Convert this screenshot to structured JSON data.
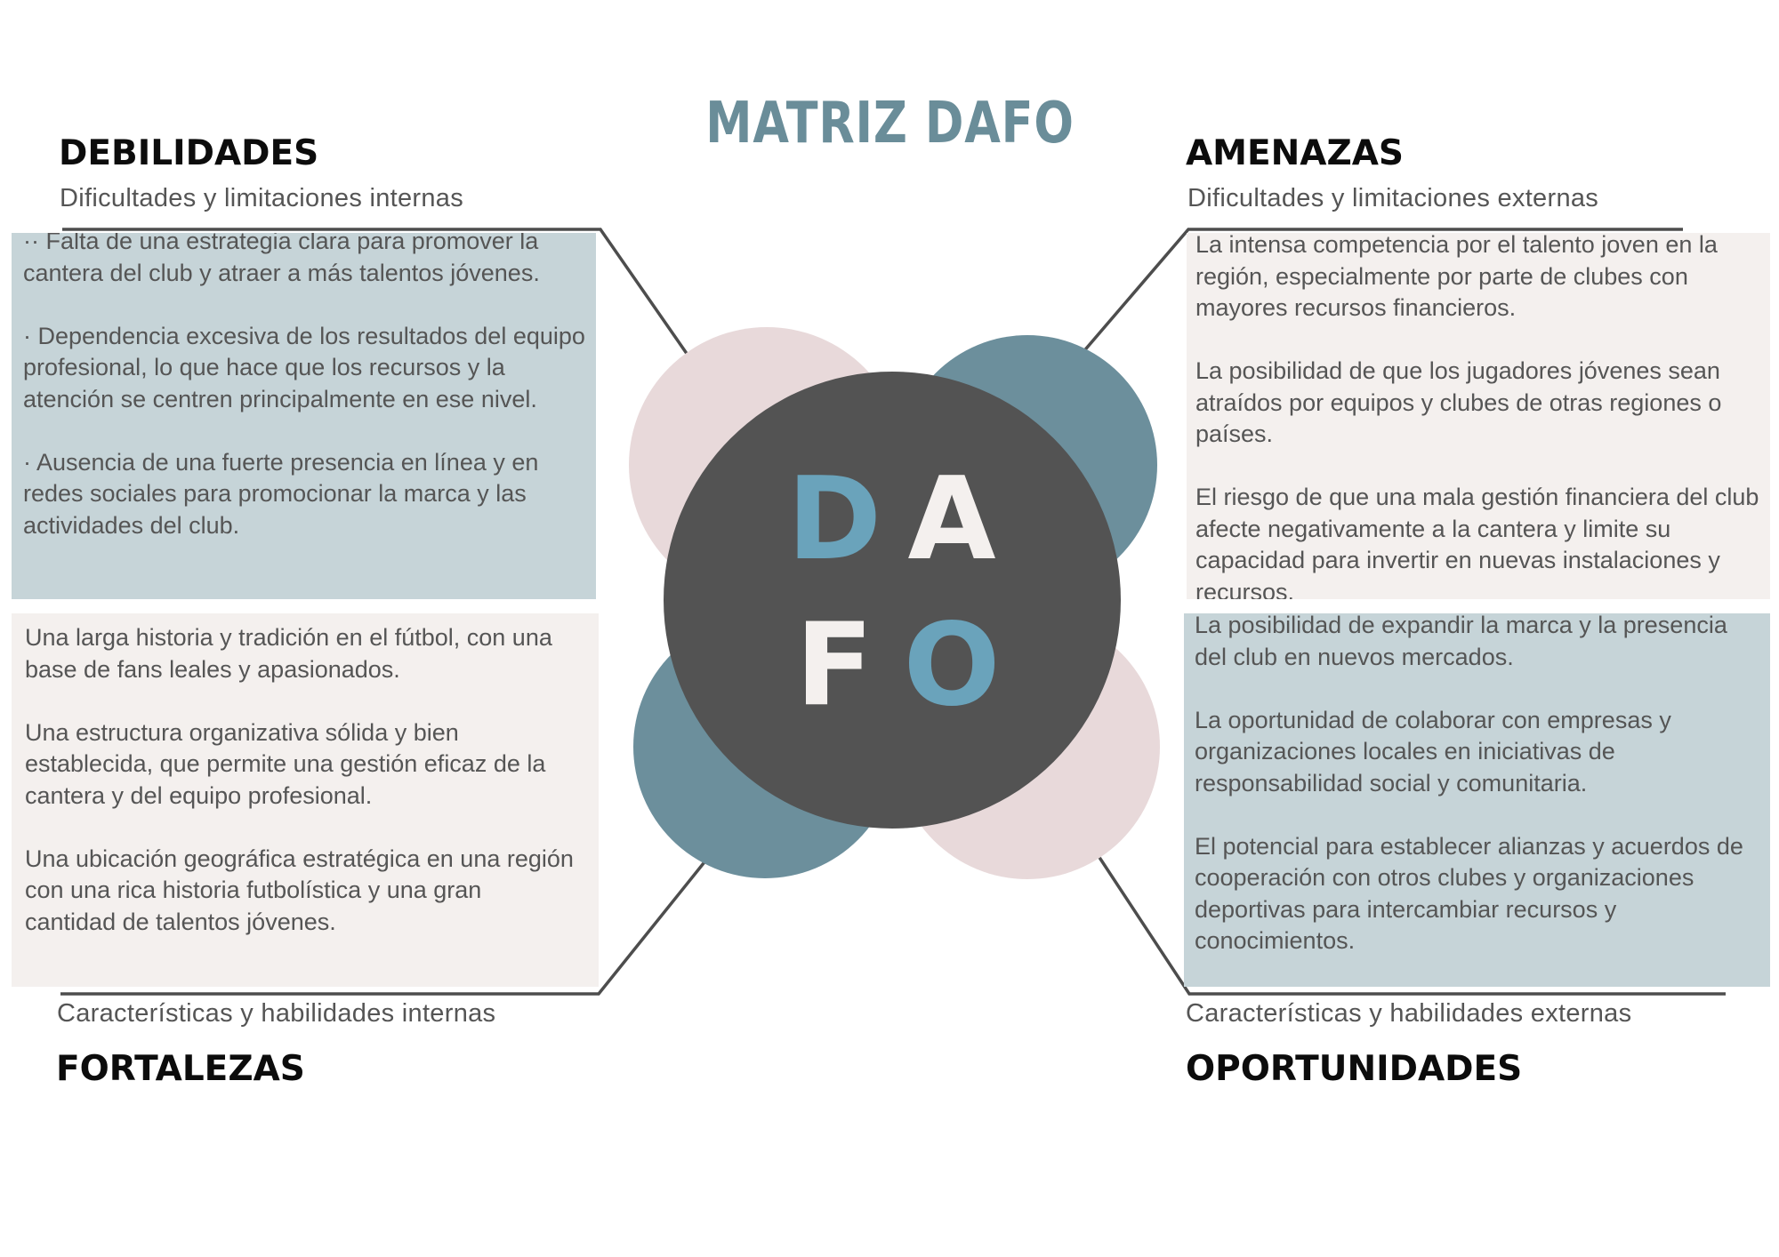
{
  "title": "MATRIZ DAFO",
  "colors": {
    "title": "#6a8d99",
    "center_circle": "#535353",
    "teal_circle": "#6c8f9c",
    "pink_circle": "#e8d9da",
    "blue_box": "#c6d4d8",
    "beige_box": "#f4f0ee",
    "letter_blue": "#6aa3bb",
    "letter_light": "#f4f0ee"
  },
  "center": {
    "letters": [
      "D",
      "A",
      "F",
      "O"
    ]
  },
  "debilidades": {
    "heading": "DEBILIDADES",
    "subheading": "Dificultades y limitaciones internas",
    "items": [
      "·· Falta de una estrategia clara para promover la cantera del club y atraer a más talentos jóvenes.",
      "· Dependencia excesiva de los resultados del equipo profesional, lo que hace que los recursos y la atención se centren principalmente en ese nivel.",
      "· Ausencia de una fuerte presencia en línea y en redes sociales para promocionar la marca y las actividades del club."
    ]
  },
  "amenazas": {
    "heading": "AMENAZAS",
    "subheading": "Dificultades y limitaciones externas",
    "items": [
      "La intensa competencia por el talento joven en la región, especialmente por parte de clubes con mayores recursos financieros.",
      "La posibilidad de que los jugadores jóvenes sean atraídos por equipos y clubes de otras regiones o países.",
      "El riesgo de que una mala gestión financiera del club afecte negativamente a la cantera y limite su capacidad para invertir en nuevas instalaciones y recursos."
    ]
  },
  "fortalezas": {
    "heading": "FORTALEZAS",
    "subheading": "Características y habilidades internas",
    "items": [
      "Una larga historia y tradición en el fútbol, con una base de fans leales y apasionados.",
      "Una estructura organizativa sólida y bien establecida, que permite una gestión eficaz de la cantera y del equipo profesional.",
      "Una ubicación geográfica estratégica en una región con una rica historia futbolística y una gran cantidad de talentos jóvenes."
    ]
  },
  "oportunidades": {
    "heading": "OPORTUNIDADES",
    "subheading": "Características y habilidades externas",
    "items": [
      "La posibilidad de expandir la marca y la presencia del club en nuevos mercados.",
      "La oportunidad de colaborar con empresas y organizaciones locales en iniciativas de responsabilidad social y comunitaria.",
      "El potencial para establecer alianzas y acuerdos de cooperación con otros clubes y organizaciones deportivas para intercambiar recursos y conocimientos."
    ]
  }
}
